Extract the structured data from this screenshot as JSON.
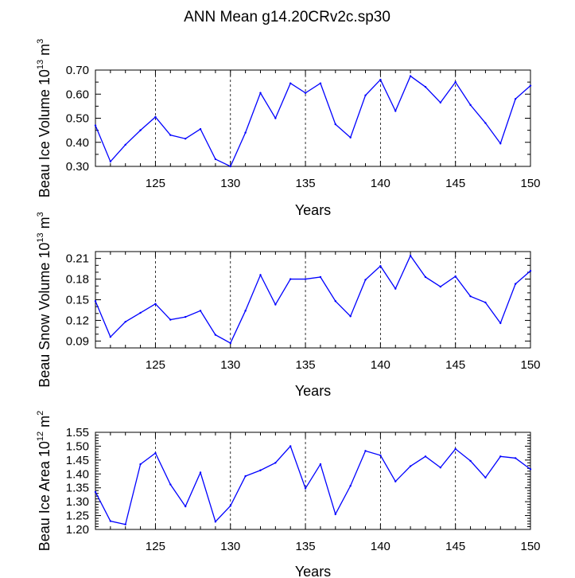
{
  "figure_title": "ANN Mean g14.20CRv2c.sp30",
  "series_color": "#0000ff",
  "chart_data": [
    {
      "type": "line",
      "xlabel": "Years",
      "ylabel_main": "Beau Ice Volume 10",
      "ylabel_exp": "13",
      "ylabel_unit": " m",
      "ylabel_unit_exp": "3",
      "xlim": [
        121,
        150
      ],
      "ylim": [
        0.3,
        0.7
      ],
      "xticks": [
        125,
        130,
        135,
        140,
        145,
        150
      ],
      "yticks": [
        0.3,
        0.4,
        0.5,
        0.6,
        0.7
      ],
      "ytick_labels": [
        "0.30",
        "0.40",
        "0.50",
        "0.60",
        "0.70"
      ],
      "yminor": 0.05,
      "x": [
        121,
        122,
        123,
        124,
        125,
        126,
        127,
        128,
        129,
        130,
        131,
        132,
        133,
        134,
        135,
        136,
        137,
        138,
        139,
        140,
        141,
        142,
        143,
        144,
        145,
        146,
        147,
        148,
        149,
        150
      ],
      "values": [
        0.47,
        0.32,
        0.39,
        0.45,
        0.505,
        0.43,
        0.415,
        0.455,
        0.33,
        0.3,
        0.44,
        0.605,
        0.5,
        0.645,
        0.605,
        0.645,
        0.475,
        0.42,
        0.595,
        0.66,
        0.53,
        0.675,
        0.63,
        0.565,
        0.65,
        0.555,
        0.48,
        0.395,
        0.58,
        0.635
      ]
    },
    {
      "type": "line",
      "xlabel": "Years",
      "ylabel_main": "Beau Snow Volume 10",
      "ylabel_exp": "13",
      "ylabel_unit": " m",
      "ylabel_unit_exp": "3",
      "xlim": [
        121,
        150
      ],
      "ylim": [
        0.08,
        0.22
      ],
      "xticks": [
        125,
        130,
        135,
        140,
        145,
        150
      ],
      "yticks": [
        0.09,
        0.12,
        0.15,
        0.18,
        0.21
      ],
      "ytick_labels": [
        "0.09",
        "0.12",
        "0.15",
        "0.18",
        "0.21"
      ],
      "yminor": 0.01,
      "x": [
        121,
        122,
        123,
        124,
        125,
        126,
        127,
        128,
        129,
        130,
        131,
        132,
        133,
        134,
        135,
        136,
        137,
        138,
        139,
        140,
        141,
        142,
        143,
        144,
        145,
        146,
        147,
        148,
        149,
        150
      ],
      "values": [
        0.148,
        0.096,
        0.118,
        0.131,
        0.144,
        0.121,
        0.125,
        0.134,
        0.099,
        0.087,
        0.134,
        0.186,
        0.143,
        0.18,
        0.18,
        0.183,
        0.148,
        0.126,
        0.179,
        0.199,
        0.166,
        0.214,
        0.183,
        0.169,
        0.184,
        0.155,
        0.146,
        0.116,
        0.173,
        0.192
      ]
    },
    {
      "type": "line",
      "xlabel": "Years",
      "ylabel_main": "Beau Ice Area 10",
      "ylabel_exp": "12",
      "ylabel_unit": " m",
      "ylabel_unit_exp": "2",
      "xlim": [
        121,
        150
      ],
      "ylim": [
        1.2,
        1.55
      ],
      "xticks": [
        125,
        130,
        135,
        140,
        145,
        150
      ],
      "yticks": [
        1.2,
        1.25,
        1.3,
        1.35,
        1.4,
        1.45,
        1.5,
        1.55
      ],
      "ytick_labels": [
        "1.20",
        "1.25",
        "1.30",
        "1.35",
        "1.40",
        "1.45",
        "1.50",
        "1.55"
      ],
      "yminor": 0.01,
      "x": [
        121,
        122,
        123,
        124,
        125,
        126,
        127,
        128,
        129,
        130,
        131,
        132,
        133,
        134,
        135,
        136,
        137,
        138,
        139,
        140,
        141,
        142,
        143,
        144,
        145,
        146,
        147,
        148,
        149,
        150
      ],
      "values": [
        1.335,
        1.23,
        1.218,
        1.435,
        1.475,
        1.362,
        1.283,
        1.405,
        1.228,
        1.285,
        1.392,
        1.413,
        1.44,
        1.5,
        1.348,
        1.435,
        1.255,
        1.357,
        1.483,
        1.467,
        1.373,
        1.428,
        1.463,
        1.423,
        1.49,
        1.447,
        1.387,
        1.463,
        1.457,
        1.417
      ]
    }
  ]
}
